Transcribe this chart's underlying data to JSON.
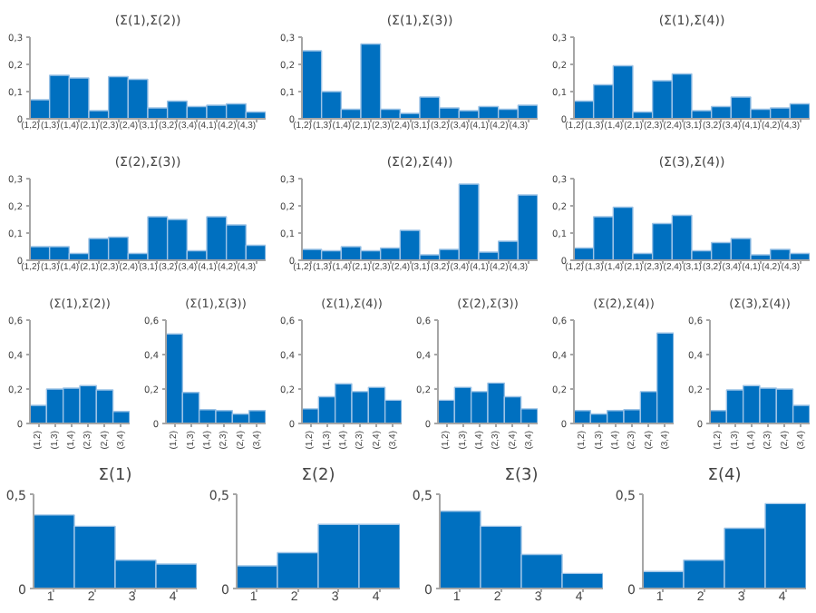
{
  "chart_data": [
    {
      "type": "bar",
      "title": "(Σ(1),Σ(2))",
      "categories": [
        "(1,2)",
        "(1,3)",
        "(1,4)",
        "(2,1)",
        "(2,3)",
        "(2,4)",
        "(3,1)",
        "(3,2)",
        "(3,4)",
        "(4,1)",
        "(4,2)",
        "(4,3)"
      ],
      "values": [
        0.07,
        0.16,
        0.15,
        0.03,
        0.155,
        0.145,
        0.04,
        0.065,
        0.045,
        0.05,
        0.055,
        0.025
      ],
      "color": "#0070c0",
      "ylim": [
        0,
        0.3
      ],
      "yticks": [
        0,
        {
          "value": 0.1,
          "label": "0,1"
        },
        {
          "value": 0.2,
          "label": "0,2"
        },
        {
          "value": 0.3,
          "label": "0,3"
        }
      ],
      "grid": false
    },
    {
      "type": "bar",
      "title": "(Σ(1),Σ(3))",
      "categories": [
        "(1,2)",
        "(1,3)",
        "(1,4)",
        "(2,1)",
        "(2,3)",
        "(2,4)",
        "(3,1)",
        "(3,2)",
        "(3,4)",
        "(4,1)",
        "(4,2)",
        "(4,3)"
      ],
      "values": [
        0.25,
        0.1,
        0.035,
        0.275,
        0.035,
        0.02,
        0.08,
        0.04,
        0.03,
        0.045,
        0.035,
        0.05
      ],
      "color": "#0070c0",
      "ylim": [
        0,
        0.3
      ],
      "yticks": [
        0,
        {
          "value": 0.1,
          "label": "0,1"
        },
        {
          "value": 0.2,
          "label": "0,2"
        },
        {
          "value": 0.3,
          "label": "0,3"
        }
      ],
      "grid": false
    },
    {
      "type": "bar",
      "title": "(Σ(1),Σ(4))",
      "categories": [
        "(1,2)",
        "(1,3)",
        "(1,4)",
        "(2,1)",
        "(2,3)",
        "(2,4)",
        "(3,1)",
        "(3,2)",
        "(3,4)",
        "(4,1)",
        "(4,2)",
        "(4,3)"
      ],
      "values": [
        0.065,
        0.125,
        0.195,
        0.025,
        0.14,
        0.165,
        0.03,
        0.045,
        0.08,
        0.035,
        0.04,
        0.055
      ],
      "color": "#0070c0",
      "ylim": [
        0,
        0.3
      ],
      "yticks": [
        0,
        {
          "value": 0.1,
          "label": "0,1"
        },
        {
          "value": 0.2,
          "label": "0,2"
        },
        {
          "value": 0.3,
          "label": "0,3"
        }
      ],
      "grid": false
    },
    {
      "type": "bar",
      "title": "(Σ(2),Σ(3))",
      "categories": [
        "(1,2)",
        "(1,3)",
        "(1,4)",
        "(2,1)",
        "(2,3)",
        "(2,4)",
        "(3,1)",
        "(3,2)",
        "(3,4)",
        "(4,1)",
        "(4,2)",
        "(4,3)"
      ],
      "values": [
        0.05,
        0.05,
        0.025,
        0.08,
        0.085,
        0.025,
        0.16,
        0.15,
        0.035,
        0.16,
        0.13,
        0.055
      ],
      "color": "#0070c0",
      "ylim": [
        0,
        0.3
      ],
      "yticks": [
        0,
        {
          "value": 0.1,
          "label": "0,1"
        },
        {
          "value": 0.2,
          "label": "0,2"
        },
        {
          "value": 0.3,
          "label": "0,3"
        }
      ],
      "grid": false
    },
    {
      "type": "bar",
      "title": "(Σ(2),Σ(4))",
      "categories": [
        "(1,2)",
        "(1,3)",
        "(1,4)",
        "(2,1)",
        "(2,3)",
        "(2,4)",
        "(3,1)",
        "(3,2)",
        "(3,4)",
        "(4,1)",
        "(4,2)",
        "(4,3)"
      ],
      "values": [
        0.04,
        0.035,
        0.05,
        0.035,
        0.045,
        0.11,
        0.02,
        0.04,
        0.28,
        0.03,
        0.07,
        0.24
      ],
      "color": "#0070c0",
      "ylim": [
        0,
        0.3
      ],
      "yticks": [
        0,
        {
          "value": 0.1,
          "label": "0,1"
        },
        {
          "value": 0.2,
          "label": "0,2"
        },
        {
          "value": 0.3,
          "label": "0,3"
        }
      ],
      "grid": false
    },
    {
      "type": "bar",
      "title": "(Σ(3),Σ(4))",
      "categories": [
        "(1,2)",
        "(1,3)",
        "(1,4)",
        "(2,1)",
        "(2,3)",
        "(2,4)",
        "(3,1)",
        "(3,2)",
        "(3,4)",
        "(4,1)",
        "(4,2)",
        "(4,3)"
      ],
      "values": [
        0.045,
        0.16,
        0.195,
        0.025,
        0.135,
        0.165,
        0.035,
        0.065,
        0.08,
        0.02,
        0.04,
        0.025
      ],
      "color": "#0070c0",
      "ylim": [
        0,
        0.3
      ],
      "yticks": [
        0,
        {
          "value": 0.1,
          "label": "0,1"
        },
        {
          "value": 0.2,
          "label": "0,2"
        },
        {
          "value": 0.3,
          "label": "0,3"
        }
      ],
      "grid": false
    },
    {
      "type": "bar",
      "title": "(Σ(1),Σ(2))",
      "categories": [
        "(1,2)",
        "(1,3)",
        "(1,4)",
        "(2,3)",
        "(2,4)",
        "(3,4)"
      ],
      "values": [
        0.105,
        0.2,
        0.205,
        0.22,
        0.195,
        0.07
      ],
      "color": "#0070c0",
      "ylim": [
        0,
        0.6
      ],
      "yticks": [
        0,
        {
          "value": 0.2,
          "label": "0,2"
        },
        {
          "value": 0.4,
          "label": "0,4"
        },
        {
          "value": 0.6,
          "label": "0,6"
        }
      ],
      "grid": false
    },
    {
      "type": "bar",
      "title": "(Σ(1),Σ(3))",
      "categories": [
        "(1,2)",
        "(1,3)",
        "(1,4)",
        "(2,3)",
        "(2,4)",
        "(3,4)"
      ],
      "values": [
        0.52,
        0.18,
        0.08,
        0.075,
        0.055,
        0.075
      ],
      "color": "#0070c0",
      "ylim": [
        0,
        0.6
      ],
      "yticks": [
        0,
        {
          "value": 0.2,
          "label": "0,2"
        },
        {
          "value": 0.4,
          "label": "0,4"
        },
        {
          "value": 0.6,
          "label": "0,6"
        }
      ],
      "grid": false
    },
    {
      "type": "bar",
      "title": "(Σ(1),Σ(4))",
      "categories": [
        "(1,2)",
        "(1,3)",
        "(1,4)",
        "(2,3)",
        "(2,4)",
        "(3,4)"
      ],
      "values": [
        0.085,
        0.155,
        0.23,
        0.185,
        0.21,
        0.135
      ],
      "color": "#0070c0",
      "ylim": [
        0,
        0.6
      ],
      "yticks": [
        0,
        {
          "value": 0.2,
          "label": "0,2"
        },
        {
          "value": 0.4,
          "label": "0,4"
        },
        {
          "value": 0.6,
          "label": "0,6"
        }
      ],
      "grid": false
    },
    {
      "type": "bar",
      "title": "(Σ(2),Σ(3))",
      "categories": [
        "(1,2)",
        "(1,3)",
        "(1,4)",
        "(2,3)",
        "(2,4)",
        "(3,4)"
      ],
      "values": [
        0.135,
        0.21,
        0.185,
        0.235,
        0.155,
        0.085
      ],
      "color": "#0070c0",
      "ylim": [
        0,
        0.6
      ],
      "yticks": [
        0,
        {
          "value": 0.2,
          "label": "0,2"
        },
        {
          "value": 0.4,
          "label": "0,4"
        },
        {
          "value": 0.6,
          "label": "0,6"
        }
      ],
      "grid": false
    },
    {
      "type": "bar",
      "title": "(Σ(2),Σ(4))",
      "categories": [
        "(1,2)",
        "(1,3)",
        "(1,4)",
        "(2,3)",
        "(2,4)",
        "(3,4)"
      ],
      "values": [
        0.075,
        0.055,
        0.075,
        0.08,
        0.185,
        0.525
      ],
      "color": "#0070c0",
      "ylim": [
        0,
        0.6
      ],
      "yticks": [
        0,
        {
          "value": 0.2,
          "label": "0,2"
        },
        {
          "value": 0.4,
          "label": "0,4"
        },
        {
          "value": 0.6,
          "label": "0,6"
        }
      ],
      "grid": false
    },
    {
      "type": "bar",
      "title": "(Σ(3),Σ(4))",
      "categories": [
        "(1,2)",
        "(1,3)",
        "(1,4)",
        "(2,3)",
        "(2,4)",
        "(3,4)"
      ],
      "values": [
        0.075,
        0.195,
        0.22,
        0.205,
        0.2,
        0.105
      ],
      "color": "#0070c0",
      "ylim": [
        0,
        0.6
      ],
      "yticks": [
        0,
        {
          "value": 0.2,
          "label": "0,2"
        },
        {
          "value": 0.4,
          "label": "0,4"
        },
        {
          "value": 0.6,
          "label": "0,6"
        }
      ],
      "grid": false
    },
    {
      "type": "bar",
      "title": "Σ(1)",
      "categories": [
        "1",
        "2",
        "3",
        "4"
      ],
      "values": [
        0.39,
        0.33,
        0.15,
        0.13
      ],
      "color": "#0070c0",
      "ylim": [
        0,
        0.5
      ],
      "yticks": [
        0,
        {
          "value": 0.5,
          "label": "0,5"
        }
      ],
      "grid": false
    },
    {
      "type": "bar",
      "title": "Σ(2)",
      "categories": [
        "1",
        "2",
        "3",
        "4"
      ],
      "values": [
        0.12,
        0.19,
        0.34,
        0.34
      ],
      "color": "#0070c0",
      "ylim": [
        0,
        0.5
      ],
      "yticks": [
        0,
        {
          "value": 0.5,
          "label": "0,5"
        }
      ],
      "grid": false
    },
    {
      "type": "bar",
      "title": "Σ(3)",
      "categories": [
        "1",
        "2",
        "3",
        "4"
      ],
      "values": [
        0.41,
        0.33,
        0.18,
        0.08
      ],
      "color": "#0070c0",
      "ylim": [
        0,
        0.5
      ],
      "yticks": [
        0,
        {
          "value": 0.5,
          "label": "0,5"
        }
      ],
      "grid": false
    },
    {
      "type": "bar",
      "title": "Σ(4)",
      "categories": [
        "1",
        "2",
        "3",
        "4"
      ],
      "values": [
        0.09,
        0.15,
        0.32,
        0.45
      ],
      "color": "#0070c0",
      "ylim": [
        0,
        0.5
      ],
      "yticks": [
        0,
        {
          "value": 0.5,
          "label": "0,5"
        }
      ],
      "grid": false
    }
  ]
}
